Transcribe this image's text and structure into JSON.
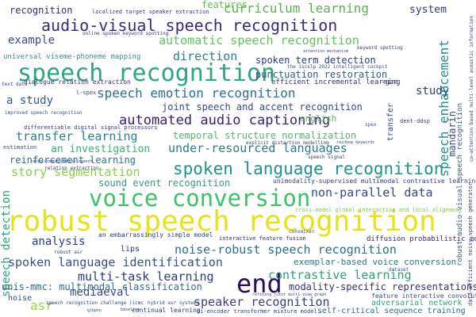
{
  "words": [
    {
      "text": "robust speech recognition",
      "color": "#e4e41d"
    },
    {
      "text": "speech recognition",
      "color": "#2da77c"
    },
    {
      "text": "voice conversion",
      "color": "#3ec268"
    },
    {
      "text": "spoken language recognition",
      "color": "#1f938c"
    },
    {
      "text": "audio-visual speech recognition",
      "color": "#3b2a78"
    },
    {
      "text": "end",
      "color": "#2c0e55"
    },
    {
      "text": "automated audio captioning",
      "color": "#3a1d6b"
    },
    {
      "text": "speech emotion recognition",
      "color": "#2c6f8e"
    },
    {
      "text": "curriculum learning",
      "color": "#5bb24c"
    },
    {
      "text": "automatic speech recognition",
      "color": "#5cc55a"
    },
    {
      "text": "under-resourced languages",
      "color": "#2a7a8d"
    },
    {
      "text": "spoken language identification",
      "color": "#3a4f8a"
    },
    {
      "text": "noise-robust speech recognition",
      "color": "#2b6e8e"
    },
    {
      "text": "speaker recognition",
      "color": "#433a83"
    },
    {
      "text": "multi-task learning",
      "color": "#2c3b7b"
    },
    {
      "text": "contrastive learning",
      "color": "#2ea17d"
    },
    {
      "text": "story segmentation",
      "color": "#89d045"
    },
    {
      "text": "transfer learning",
      "color": "#2e7f8e"
    },
    {
      "text": "non-parallel data",
      "color": "#37478a"
    },
    {
      "text": "direction",
      "color": "#2c7f8e"
    },
    {
      "text": "speech enhancement",
      "color": "#21908d"
    },
    {
      "text": "speech detection",
      "color": "#2aa17e"
    },
    {
      "text": "temporal structure normalization",
      "color": "#5ab16d"
    },
    {
      "text": "joint speech and accent recognition",
      "color": "#39488a"
    },
    {
      "text": "example",
      "color": "#3d4f8a"
    },
    {
      "text": "a study",
      "color": "#2f5a8c"
    },
    {
      "text": "study",
      "color": "#2a3f7d"
    },
    {
      "text": "an investigation",
      "color": "#3ab076"
    },
    {
      "text": "reinforcement learning",
      "color": "#2a748e"
    },
    {
      "text": "sound event recognition",
      "color": "#3a9a86"
    },
    {
      "text": "spoken term detection",
      "color": "#2d3d80"
    },
    {
      "text": "punctuation restoration",
      "color": "#305c8c"
    },
    {
      "text": "recognition",
      "color": "#3a2d7a"
    },
    {
      "text": "features",
      "color": "#6bc054"
    },
    {
      "text": "system",
      "color": "#34367f"
    },
    {
      "text": "analysis",
      "color": "#2e3d7f"
    },
    {
      "text": "mediaeval",
      "color": "#3a4b89"
    },
    {
      "text": "asr",
      "color": "#9ad43a"
    },
    {
      "text": "exemplar-based voice conversion",
      "color": "#2a7b8e"
    },
    {
      "text": "modality-specific representations",
      "color": "#3f2c78"
    },
    {
      "text": "unis-mmc: multimodal classification",
      "color": "#2f6b8d"
    },
    {
      "text": "mandarin",
      "color": "#3c4e8a"
    },
    {
      "text": "english",
      "color": "#5ab45e"
    },
    {
      "text": "diffusion probabilistic model",
      "color": "#3a2a72"
    },
    {
      "text": "adversarial network",
      "color": "#2aa27e"
    },
    {
      "text": "self-critical sequence training",
      "color": "#2c6d8e"
    },
    {
      "text": "noise",
      "color": "#3a4a88"
    },
    {
      "text": "robust audio-visual speech recognition",
      "color": "#3a5c8c"
    },
    {
      "text": "lips",
      "color": "#2a3a7c"
    },
    {
      "text": "transfer",
      "color": "#2e4c88"
    },
    {
      "text": "universal viseme-phoneme mapping",
      "color": "#3d8f8b"
    },
    {
      "text": "dialogue relation extraction",
      "color": "#3c2f7c"
    },
    {
      "text": "localized target speaker extraction",
      "color": "#3a3b82"
    },
    {
      "text": "efficient incremental learning",
      "color": "#2f2f75"
    },
    {
      "text": "interactive feature fusion",
      "color": "#3a2a72"
    },
    {
      "text": "an embarrassingly simple model",
      "color": "#2f3f7f"
    },
    {
      "text": "unimodality-supervised multimodal contrastive learning",
      "color": "#3a3a82"
    },
    {
      "text": "cross-model global interaction and local alignment",
      "color": "#80c84a"
    },
    {
      "text": "differentiable digital signal processors",
      "color": "#2f3f7f"
    },
    {
      "text": "improved speech recognition",
      "color": "#3d4f8a"
    },
    {
      "text": "bi-encoder transformer mixture model",
      "color": "#2f3f7f"
    },
    {
      "text": "feature interactive convolution",
      "color": "#3a4a88"
    },
    {
      "text": "continual learning",
      "color": "#2c3b7b"
    },
    {
      "text": "hybrid asr systems",
      "color": "#3a4a88"
    },
    {
      "text": "speech recognition challenge (icmc",
      "color": "#2f3f7f"
    },
    {
      "text": "refining joint multi-view graph",
      "color": "#3a4a88"
    },
    {
      "text": "online spoken keyword spotting",
      "color": "#3a3a82"
    },
    {
      "text": "explicit distortion modelling",
      "color": "#2f3f7f"
    },
    {
      "text": "the iscslp 2022 intelligent cockpit",
      "color": "#3a4a88"
    },
    {
      "text": "data-efficient noisy speech generator",
      "color": "#3a3a82"
    },
    {
      "text": "co-attention based multi-level acoustic information",
      "color": "#2f3f7f"
    },
    {
      "text": "estimation",
      "color": "#3a4a88"
    },
    {
      "text": "relation extraction",
      "color": "#3a3a82"
    },
    {
      "text": "radio communication speech",
      "color": "#2f3f7f"
    },
    {
      "text": "dent-ddsp",
      "color": "#3a3a82"
    },
    {
      "text": "convmixer",
      "color": "#3a4a88"
    },
    {
      "text": "-gan",
      "color": "#3a3a82"
    },
    {
      "text": "l-spex",
      "color": "#3a4a88"
    },
    {
      "text": "speech signal",
      "color": "#3a3a82"
    },
    {
      "text": "spex",
      "color": "#3a4a88"
    },
    {
      "text": "keyword spotting",
      "color": "#2f3f7f"
    },
    {
      "text": "attention mechanism",
      "color": "#3a4a88"
    },
    {
      "text": "robust asr",
      "color": "#2f3f7f"
    },
    {
      "text": "text data",
      "color": "#3a4a88"
    },
    {
      "text": "baseline",
      "color": "#2f3f7f"
    },
    {
      "text": "rainbow keywords",
      "color": "#3a4a88"
    },
    {
      "text": "glbpnn",
      "color": "#2f3f7f"
    },
    {
      "text": "dataset",
      "color": "#3a4a88"
    }
  ]
}
